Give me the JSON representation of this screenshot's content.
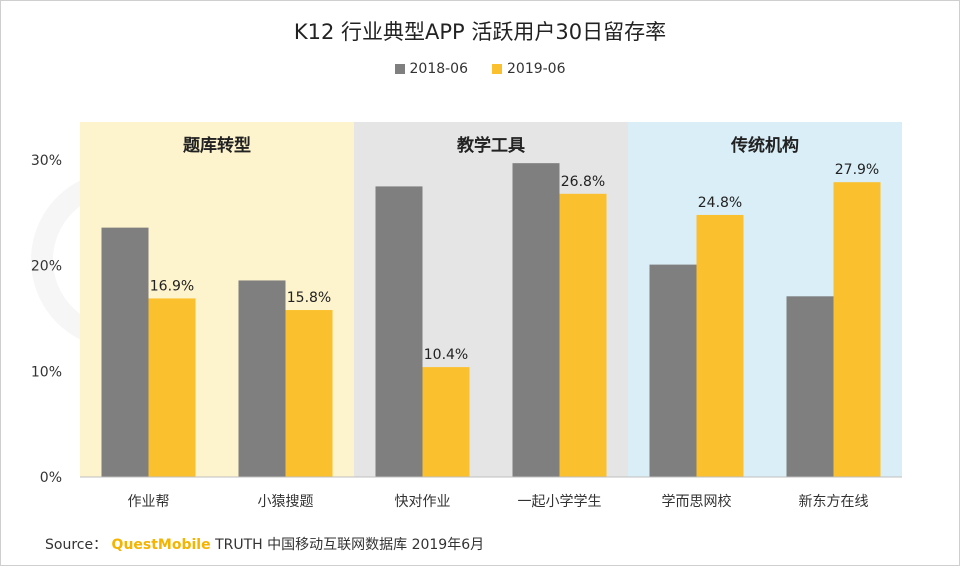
{
  "chart_data": {
    "type": "bar",
    "title": "K12 行业典型APP 活跃用户30日留存率",
    "categories": [
      "作业帮",
      "小猿搜题",
      "快对作业",
      "一起小学学生",
      "学而思网校",
      "新东方在线"
    ],
    "groups": [
      {
        "label": "题库转型",
        "categories": [
          "作业帮",
          "小猿搜题"
        ],
        "color": "#fdf3cc"
      },
      {
        "label": "教学工具",
        "categories": [
          "快对作业",
          "一起小学学生"
        ],
        "color": "#e5e5e5"
      },
      {
        "label": "传统机构",
        "categories": [
          "学而思网校",
          "新东方在线"
        ],
        "color": "#d9eef7"
      }
    ],
    "series": [
      {
        "name": "2018-06",
        "color": "#7f7f7f",
        "values": [
          23.6,
          18.6,
          27.5,
          29.7,
          20.1,
          17.1
        ],
        "labels": [
          "",
          "",
          "",
          "",
          "",
          ""
        ]
      },
      {
        "name": "2019-06",
        "color": "#fbc02d",
        "values": [
          16.9,
          15.8,
          10.4,
          26.8,
          24.8,
          27.9
        ],
        "labels": [
          "16.9%",
          "15.8%",
          "10.4%",
          "26.8%",
          "24.8%",
          "27.9%"
        ]
      }
    ],
    "yticks": [
      "0%",
      "10%",
      "20%",
      "30%"
    ],
    "ylim": [
      0,
      30
    ],
    "grid": false,
    "legend": "top-center"
  },
  "source": {
    "prefix": "Source：",
    "brand": "QuestMobile",
    "rest": "TRUTH 中国移动互联网数据库 2019年6月"
  }
}
